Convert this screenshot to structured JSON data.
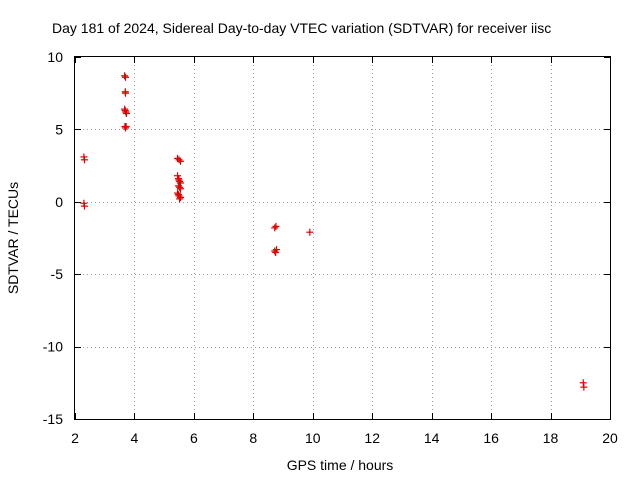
{
  "chart_data": {
    "type": "scatter",
    "title": "Day 181 of 2024, Sidereal Day-to-day VTEC variation (SDTVAR) for receiver iisc",
    "xlabel": "GPS time / hours",
    "ylabel": "SDTVAR / TECUs",
    "xlim": [
      2,
      20
    ],
    "ylim": [
      -15,
      10
    ],
    "xticks": [
      2,
      4,
      6,
      8,
      10,
      12,
      14,
      16,
      18,
      20
    ],
    "yticks": [
      -15,
      -10,
      -5,
      0,
      5,
      10
    ],
    "xtick_labels": [
      "2",
      "4",
      "6",
      "8",
      "10",
      "12",
      "14",
      "16",
      "18",
      "20"
    ],
    "ytick_labels": [
      "-15",
      "-10",
      "-5",
      "0",
      "5",
      "10"
    ],
    "grid": true,
    "marker": "plus",
    "color": "#e00000",
    "series": [
      {
        "name": "SDTVAR",
        "points": [
          [
            2.3,
            3.1
          ],
          [
            2.32,
            2.9
          ],
          [
            2.3,
            -0.1
          ],
          [
            2.32,
            -0.3
          ],
          [
            3.67,
            8.7
          ],
          [
            3.7,
            8.6
          ],
          [
            3.69,
            7.6
          ],
          [
            3.7,
            7.5
          ],
          [
            3.67,
            6.4
          ],
          [
            3.69,
            6.3
          ],
          [
            3.71,
            6.2
          ],
          [
            3.73,
            6.1
          ],
          [
            3.68,
            5.2
          ],
          [
            3.7,
            5.1
          ],
          [
            3.72,
            5.2
          ],
          [
            5.45,
            3.0
          ],
          [
            5.5,
            2.9
          ],
          [
            5.55,
            2.8
          ],
          [
            5.45,
            1.8
          ],
          [
            5.48,
            1.6
          ],
          [
            5.5,
            1.5
          ],
          [
            5.52,
            1.4
          ],
          [
            5.55,
            1.3
          ],
          [
            5.48,
            1.1
          ],
          [
            5.52,
            1.0
          ],
          [
            5.55,
            0.9
          ],
          [
            5.45,
            0.6
          ],
          [
            5.48,
            0.5
          ],
          [
            5.5,
            0.4
          ],
          [
            5.55,
            0.3
          ],
          [
            5.52,
            0.2
          ],
          [
            8.72,
            -1.8
          ],
          [
            8.76,
            -1.7
          ],
          [
            8.72,
            -3.4
          ],
          [
            8.75,
            -3.5
          ],
          [
            8.78,
            -3.3
          ],
          [
            9.9,
            -2.1
          ],
          [
            19.1,
            -12.5
          ],
          [
            19.12,
            -12.8
          ]
        ]
      }
    ]
  }
}
